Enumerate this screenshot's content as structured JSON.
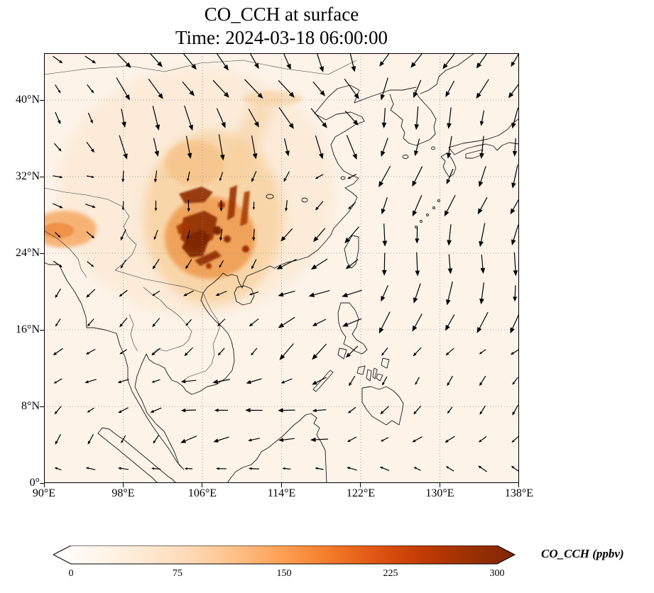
{
  "figure": {
    "title": "CO_CCH at surface",
    "subtitle": "Time: 2024-03-18 06:00:00"
  },
  "axes": {
    "x_ticks": [
      {
        "label": "90°E",
        "lon": 90
      },
      {
        "label": "98°E",
        "lon": 98
      },
      {
        "label": "106°E",
        "lon": 106
      },
      {
        "label": "114°E",
        "lon": 114
      },
      {
        "label": "122°E",
        "lon": 122
      },
      {
        "label": "130°E",
        "lon": 130
      },
      {
        "label": "138°E",
        "lon": 138
      }
    ],
    "y_ticks": [
      {
        "label": "0°",
        "lat": 0
      },
      {
        "label": "8°N",
        "lat": 8
      },
      {
        "label": "16°N",
        "lat": 16
      },
      {
        "label": "24°N",
        "lat": 24
      },
      {
        "label": "32°N",
        "lat": 32
      },
      {
        "label": "40°N",
        "lat": 40
      }
    ]
  },
  "colorbar": {
    "label": "CO_CCH (ppbv)",
    "ticks": [
      0,
      75,
      150,
      225,
      300
    ],
    "min": 0,
    "max": 300,
    "extend": "both",
    "colors": [
      "#ffffff",
      "#fff5eb",
      "#fee8d3",
      "#fdd8b4",
      "#fdbe85",
      "#fd9e53",
      "#f37b28",
      "#e05513",
      "#c23b03",
      "#9c3003",
      "#7f2704"
    ]
  },
  "chart_data": {
    "type": "heatmap",
    "variable": "CO_CCH",
    "units": "ppbv",
    "level": "surface",
    "time": "2024-03-18 06:00:00",
    "title": "CO_CCH at surface",
    "projection": "PlateCarree",
    "lon_range": [
      90,
      138
    ],
    "lat_range": [
      0,
      44.9
    ],
    "colormap": "Oranges",
    "colorbar_ticks": [
      0,
      75,
      150,
      225,
      300
    ],
    "grid": "dotted graticule every 8 degrees",
    "overlays": [
      "coastlines",
      "country borders",
      "wind vector quiver"
    ],
    "hotspots": [
      {
        "region": "Sichuan/Guizhou/Guangxi, 102-111°E 22-31°N",
        "value_ppbv": "200-300+"
      },
      {
        "region": "NE India / Myanmar border at map left edge, 90-96°E 24-28°N",
        "value_ppbv": "100-180"
      },
      {
        "region": "plume stretching NE toward 113°E 39°N",
        "value_ppbv": "50-120"
      },
      {
        "region": "background ocean and remaining land",
        "value_ppbv": "0-40"
      }
    ],
    "wind": {
      "scale": 2.0,
      "grid": {
        "lon_start": 91.4,
        "lon_end": 137.6,
        "lon_step": 3.3,
        "lat_start": 1.5,
        "lat_end": 44.2,
        "lat_step": 3.05
      },
      "regions": [
        {
          "name": "northwest-corner-westerly",
          "lon": [
            90,
            96
          ],
          "lat": [
            34,
            45
          ],
          "u": 5,
          "v": -6
        },
        {
          "name": "north-china-nw-jet",
          "lon": [
            96,
            123
          ],
          "lat": [
            34,
            45
          ],
          "u": 7,
          "v": -14
        },
        {
          "name": "northeast-downflow",
          "lon": [
            123,
            139
          ],
          "lat": [
            34,
            45
          ],
          "u": -5,
          "v": -13
        },
        {
          "name": "west-pacific-southward",
          "lon": [
            124,
            139
          ],
          "lat": [
            16,
            34
          ],
          "u": -3,
          "v": -14
        },
        {
          "name": "east-china-sea-sw-flow",
          "lon": [
            112,
            124
          ],
          "lat": [
            13,
            27
          ],
          "u": -11,
          "v": -7
        },
        {
          "name": "south-china-sea-easterly",
          "lon": [
            102,
            120
          ],
          "lat": [
            3,
            13
          ],
          "u": -10,
          "v": -3
        },
        {
          "name": "equatorial-westward",
          "lon": [
            90,
            139
          ],
          "lat": [
            0,
            3
          ],
          "u": -6,
          "v": 2
        },
        {
          "name": "indochina-weak-ne",
          "lon": [
            93,
            112
          ],
          "lat": [
            7,
            22
          ],
          "u": -6,
          "v": -4
        },
        {
          "name": "hotspot-weak-northerly",
          "lon": [
            98,
            115
          ],
          "lat": [
            22,
            34
          ],
          "u": -2,
          "v": -7
        },
        {
          "name": "tibet-westerly",
          "lon": [
            90,
            98
          ],
          "lat": [
            22,
            36
          ],
          "u": 6,
          "v": -3
        },
        {
          "name": "default",
          "lon": [
            90,
            139
          ],
          "lat": [
            0,
            45
          ],
          "u": -5,
          "v": -5
        }
      ]
    }
  }
}
